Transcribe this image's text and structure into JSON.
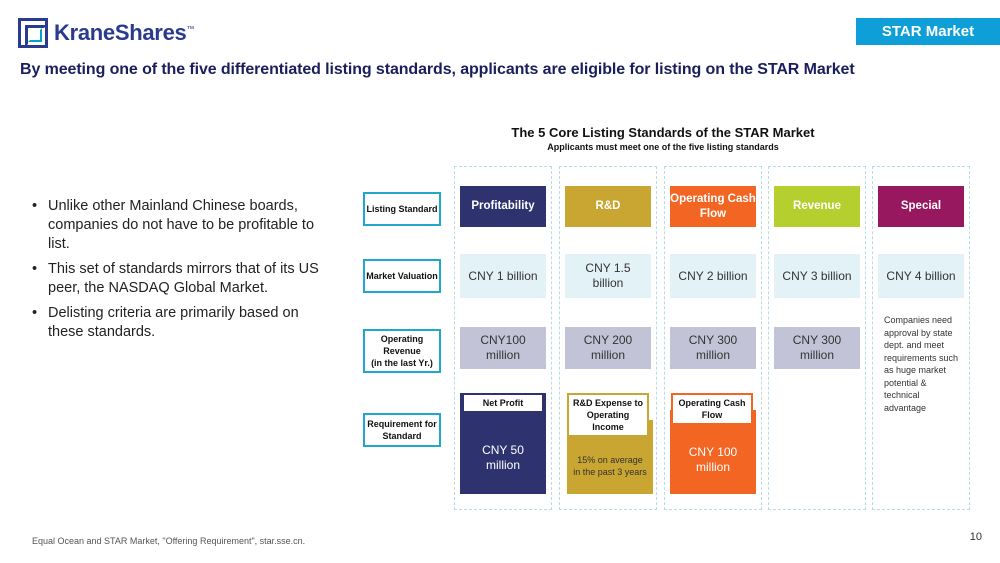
{
  "brand": {
    "name": "KraneShares",
    "trademark": "™"
  },
  "badge": "STAR Market",
  "headline": "By meeting one of the five differentiated listing standards, applicants are eligible for listing on the STAR Market",
  "bullets": [
    "Unlike other Mainland Chinese boards, companies do not have to be profitable to list.",
    "This set of standards mirrors that of its US peer, the NASDAQ Global Market.",
    "Delisting criteria are primarily based on these standards."
  ],
  "diagram": {
    "title": "The 5 Core Listing Standards of the STAR Market",
    "subtitle": "Applicants must meet one of the five listing standards",
    "row_labels": {
      "standard": "Listing Standard",
      "valuation": "Market Valuation",
      "revenue": "Operating Revenue",
      "revenue_note": "(in the last Yr.)",
      "requirement": "Requirement for Standard"
    },
    "columns": [
      {
        "header": "Profitability",
        "color": "#2e3370",
        "valuation": "CNY 1 billion",
        "revenue": "CNY100 million",
        "req_title": "Net Profit",
        "req_value": "CNY 50 million",
        "req_color": "#2e3370",
        "req_border": "#2e3370"
      },
      {
        "header": "R&D",
        "color": "#c9a531",
        "valuation": "CNY 1.5 billion",
        "revenue": "CNY 200 million",
        "req_title": "R&D Expense to Operating Income",
        "req_value": "15% on average in the past 3 years",
        "req_color": "#c9a531",
        "req_border": "#c9a531"
      },
      {
        "header": "Operating Cash Flow",
        "color": "#f26522",
        "valuation": "CNY 2 billion",
        "revenue": "CNY 300 million",
        "req_title": "Operating Cash Flow",
        "req_value": "CNY 100 million",
        "req_color": "#f26522",
        "req_border": "#f26522"
      },
      {
        "header": "Revenue",
        "color": "#b5cf2e",
        "valuation": "CNY 3 billion",
        "revenue": "CNY 300 million"
      },
      {
        "header": "Special",
        "color": "#98185f",
        "valuation": "CNY 4 billion",
        "note": "Companies need approval by state dept. and meet requirements such as huge market potential & technical advantage"
      }
    ]
  },
  "footer": "Equal Ocean and STAR Market, \"Offering Requirement\", star.sse.cn.",
  "page_number": "10"
}
